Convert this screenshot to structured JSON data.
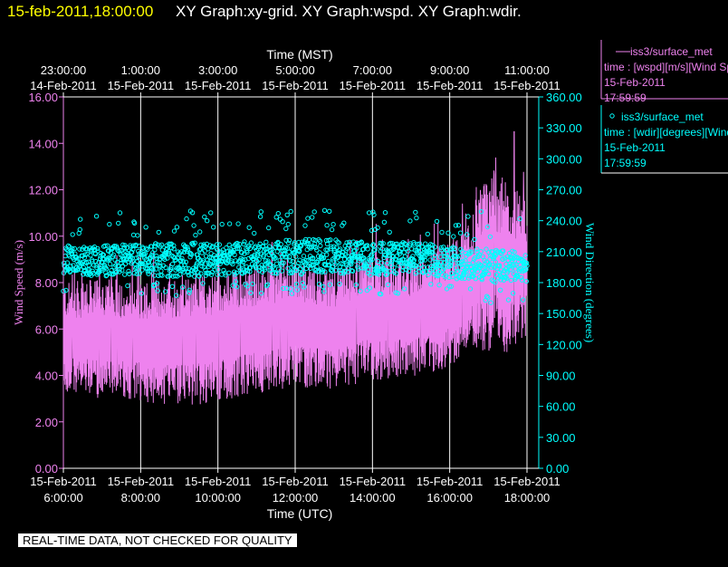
{
  "header": {
    "timestamp": "15-feb-2011,18:00:00",
    "graph_titles": "XY Graph:xy-grid.  XY Graph:wspd.  XY Graph:wdir."
  },
  "footer": {
    "quality_note": "REAL-TIME DATA, NOT CHECKED FOR QUALITY"
  },
  "colors": {
    "background": "#000000",
    "wspd": "#ee82ee",
    "wdir": "#00ffff",
    "grid": "#ffffff",
    "timestamp": "#ffff00"
  },
  "legend": [
    {
      "symbol": "line",
      "name": "iss3/surface_met",
      "line1": "time : [wspd][m/s][Wind Speed]",
      "line2": "15-Feb-2011",
      "line3": "17:59:59"
    },
    {
      "symbol": "circle",
      "name": "iss3/surface_met",
      "line1": "time : [wdir][degrees][Wind Direction]",
      "line2": "15-Feb-2011",
      "line3": "17:59:59"
    }
  ],
  "chart_data": {
    "type": "line",
    "top_axis": {
      "label": "Time (MST)",
      "ticks": [
        {
          "t": 0,
          "time": "23:00:00",
          "date": "14-Feb-2011"
        },
        {
          "t": 2,
          "time": "1:00:00",
          "date": "15-Feb-2011"
        },
        {
          "t": 4,
          "time": "3:00:00",
          "date": "15-Feb-2011"
        },
        {
          "t": 6,
          "time": "5:00:00",
          "date": "15-Feb-2011"
        },
        {
          "t": 8,
          "time": "7:00:00",
          "date": "15-Feb-2011"
        },
        {
          "t": 10,
          "time": "9:00:00",
          "date": "15-Feb-2011"
        },
        {
          "t": 12,
          "time": "11:00:00",
          "date": "15-Feb-2011"
        }
      ]
    },
    "bottom_axis": {
      "label": "Time (UTC)",
      "ticks": [
        {
          "t": 0,
          "time": "6:00:00",
          "date": "15-Feb-2011"
        },
        {
          "t": 2,
          "time": "8:00:00",
          "date": "15-Feb-2011"
        },
        {
          "t": 4,
          "time": "10:00:00",
          "date": "15-Feb-2011"
        },
        {
          "t": 6,
          "time": "12:00:00",
          "date": "15-Feb-2011"
        },
        {
          "t": 8,
          "time": "14:00:00",
          "date": "15-Feb-2011"
        },
        {
          "t": 10,
          "time": "16:00:00",
          "date": "15-Feb-2011"
        },
        {
          "t": 12,
          "time": "18:00:00",
          "date": "15-Feb-2011"
        }
      ]
    },
    "x_range_hours_utc": [
      6,
      18
    ],
    "left_axis": {
      "label": "Wind Speed (m/s)",
      "ylim": [
        0,
        16
      ],
      "ticks": [
        "0.00",
        "2.00",
        "4.00",
        "6.00",
        "8.00",
        "10.00",
        "12.00",
        "14.00",
        "16.00"
      ]
    },
    "right_axis": {
      "label": "Wind Direction (degrees)",
      "ylim": [
        0,
        360
      ],
      "ticks": [
        "0.00",
        "30.00",
        "60.00",
        "90.00",
        "120.00",
        "150.00",
        "180.00",
        "210.00",
        "240.00",
        "270.00",
        "300.00",
        "330.00",
        "360.00"
      ]
    },
    "grid": "vertical lines at labeled time ticks",
    "series": [
      {
        "key": "wspd",
        "style": "line",
        "axis": "left",
        "envelope_time_utc": [
          "6:00",
          "7:00",
          "8:00",
          "9:00",
          "10:00",
          "11:00",
          "12:00",
          "13:00",
          "14:00",
          "15:00",
          "16:00",
          "16:30",
          "17:00",
          "17:30",
          "18:00"
        ],
        "envelope_low_mps": [
          3.2,
          3.0,
          2.9,
          2.6,
          2.8,
          3.2,
          3.5,
          3.4,
          3.8,
          3.9,
          4.3,
          5.2,
          5.0,
          5.0,
          5.6
        ],
        "envelope_high_mps": [
          8.0,
          8.2,
          8.1,
          8.3,
          8.4,
          8.8,
          9.0,
          8.6,
          9.4,
          9.0,
          9.8,
          10.5,
          12.8,
          12.5,
          11.5
        ],
        "peak_mps": 14.5,
        "peak_time_utc": "17:40"
      },
      {
        "key": "wdir",
        "style": "circles",
        "axis": "right",
        "envelope_time_utc": [
          "6:00",
          "7:00",
          "8:00",
          "9:00",
          "10:00",
          "11:00",
          "12:00",
          "13:00",
          "14:00",
          "15:00",
          "16:00",
          "17:00",
          "18:00"
        ],
        "envelope_low_deg": [
          182,
          180,
          181,
          178,
          180,
          182,
          180,
          182,
          180,
          182,
          178,
          172,
          175
        ],
        "envelope_high_deg": [
          222,
          222,
          224,
          226,
          225,
          227,
          230,
          229,
          226,
          226,
          222,
          220,
          215
        ],
        "max_deg": 250
      }
    ]
  }
}
